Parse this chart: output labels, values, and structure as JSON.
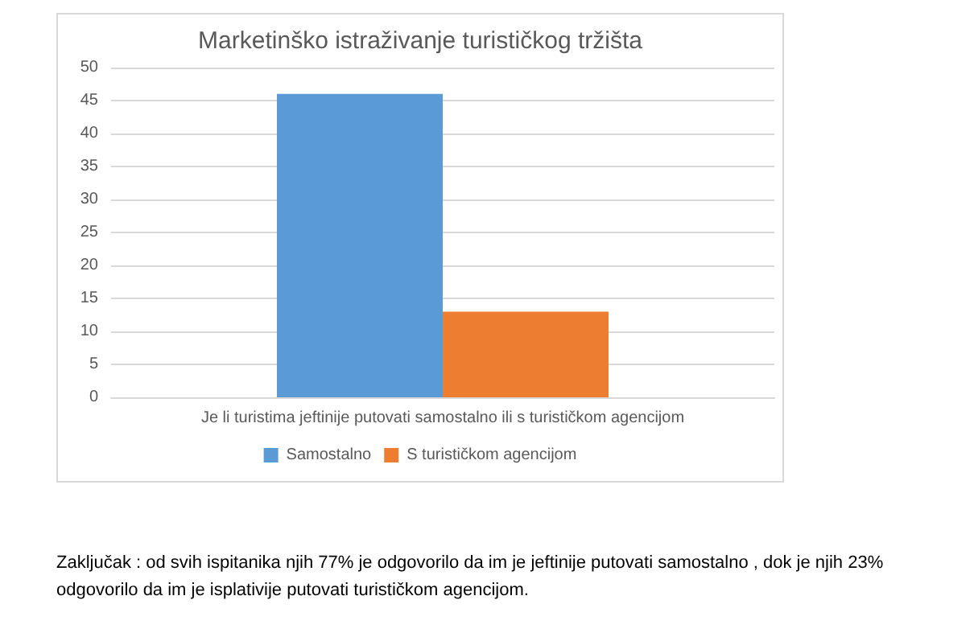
{
  "chart_data": {
    "type": "bar",
    "title": "Marketinško istraživanje turističkog tržišta",
    "categories": [
      "Je li turistima jeftinije putovati samostalno ili s turističkom agencijom"
    ],
    "series": [
      {
        "name": "Samostalno",
        "color": "#5b9bd5",
        "values": [
          46
        ]
      },
      {
        "name": "S turističkom agencijom",
        "color": "#ed7d31",
        "values": [
          13
        ]
      }
    ],
    "ylim": [
      0,
      50
    ],
    "yticks": [
      0,
      5,
      10,
      15,
      20,
      25,
      30,
      35,
      40,
      45,
      50
    ],
    "grid": "y",
    "legend": "bottom",
    "annotations": [
      "Zaključak : od svih ispitanika njih 77% je odgovorilo da im je jeftinije putovati samostalno , dok je njih 23% odgovorilo da im je isplativije putovati turističkom agencijom."
    ]
  }
}
